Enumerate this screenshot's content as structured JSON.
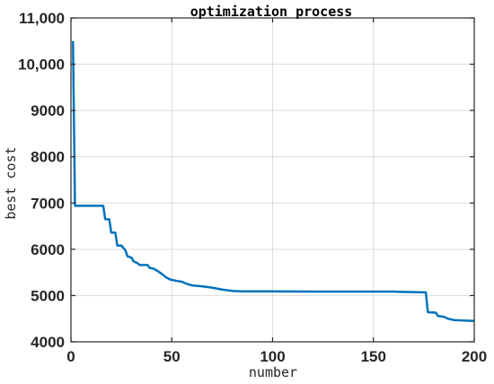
{
  "chart_data": {
    "type": "line",
    "title": "optimization process",
    "xlabel": "number",
    "ylabel": "best cost",
    "xlim": [
      0,
      200
    ],
    "ylim": [
      4000,
      11000
    ],
    "grid": true,
    "x_ticks": [
      0,
      50,
      100,
      150,
      200
    ],
    "x_tick_labels": [
      "0",
      "50",
      "100",
      "150",
      "200"
    ],
    "y_ticks": [
      4000,
      5000,
      6000,
      7000,
      8000,
      9000,
      10000,
      11000
    ],
    "y_tick_labels": [
      "4000",
      "5000",
      "6000",
      "7000",
      "8000",
      "9000",
      "10,000",
      "11,000"
    ],
    "series": [
      {
        "color": "#0072BD",
        "points": [
          [
            1,
            10500
          ],
          [
            2,
            6940
          ],
          [
            16,
            6940
          ],
          [
            17,
            6650
          ],
          [
            19,
            6650
          ],
          [
            20,
            6360
          ],
          [
            22,
            6360
          ],
          [
            23,
            6080
          ],
          [
            25,
            6080
          ],
          [
            27,
            5980
          ],
          [
            28,
            5850
          ],
          [
            30,
            5820
          ],
          [
            31,
            5740
          ],
          [
            33,
            5700
          ],
          [
            34,
            5660
          ],
          [
            38,
            5660
          ],
          [
            39,
            5600
          ],
          [
            41,
            5580
          ],
          [
            43,
            5530
          ],
          [
            45,
            5470
          ],
          [
            47,
            5400
          ],
          [
            49,
            5350
          ],
          [
            52,
            5320
          ],
          [
            55,
            5300
          ],
          [
            57,
            5260
          ],
          [
            60,
            5220
          ],
          [
            65,
            5200
          ],
          [
            70,
            5170
          ],
          [
            75,
            5130
          ],
          [
            80,
            5100
          ],
          [
            85,
            5090
          ],
          [
            100,
            5090
          ],
          [
            120,
            5085
          ],
          [
            140,
            5085
          ],
          [
            160,
            5085
          ],
          [
            163,
            5080
          ],
          [
            176,
            5070
          ],
          [
            177,
            4640
          ],
          [
            181,
            4630
          ],
          [
            182,
            4560
          ],
          [
            185,
            4540
          ],
          [
            187,
            4500
          ],
          [
            190,
            4470
          ],
          [
            195,
            4460
          ],
          [
            200,
            4450
          ]
        ]
      }
    ]
  }
}
